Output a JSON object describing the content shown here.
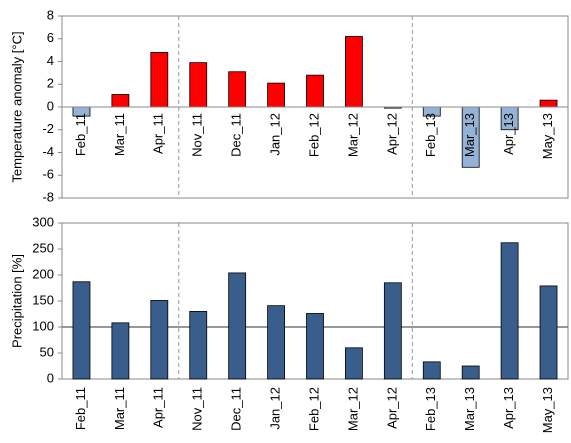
{
  "chart_data": [
    {
      "type": "bar",
      "ylabel": "Temperature anomaly [°C]",
      "categories": [
        "Feb_11",
        "Mar_11",
        "Apr_11",
        "Nov_11",
        "Dec_11",
        "Jan_12",
        "Feb_12",
        "Mar_12",
        "Apr_12",
        "Feb_13",
        "Mar_13",
        "Apr_13",
        "May_13"
      ],
      "values": [
        -0.8,
        1.1,
        4.8,
        3.9,
        3.1,
        2.1,
        2.8,
        6.2,
        -0.1,
        -0.8,
        -5.3,
        -2.0,
        0.6
      ],
      "positive_color": "#ff0000",
      "negative_color": "#95b3d7",
      "ylim": [
        -8,
        8
      ],
      "yticks": [
        -8,
        -6,
        -4,
        -2,
        0,
        2,
        4,
        6,
        8
      ]
    },
    {
      "type": "bar",
      "ylabel": "Precipitation [%]",
      "categories": [
        "Feb_11",
        "Mar_11",
        "Apr_11",
        "Nov_11",
        "Dec_11",
        "Jan_12",
        "Feb_12",
        "Mar_12",
        "Apr_12",
        "Feb_13",
        "Mar_13",
        "Apr_13",
        "May_13"
      ],
      "values": [
        187,
        108,
        151,
        130,
        204,
        141,
        126,
        60,
        185,
        33,
        25,
        262,
        179
      ],
      "color": "#3a5e8c",
      "reference_line": 100,
      "ylim": [
        0,
        300
      ],
      "yticks": [
        0,
        50,
        100,
        150,
        200,
        250,
        300
      ]
    }
  ]
}
